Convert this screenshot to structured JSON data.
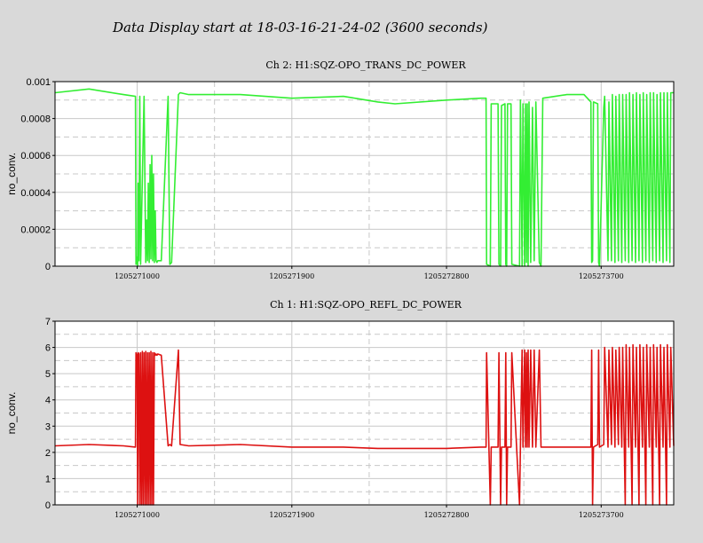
{
  "page": {
    "title": "Data Display start at 18-03-16-21-24-02 (3600 seconds)"
  },
  "colors": {
    "background": "#d9d9d9",
    "plot_bg": "#ffffff",
    "grid": "#c8c8c8",
    "trans": "#33ee33",
    "refl": "#dd1111"
  },
  "chart_data": [
    {
      "type": "line",
      "title": "Ch 2: H1:SQZ-OPO_TRANS_DC_POWER",
      "xlabel": "",
      "ylabel": "no_conv.",
      "xlim": [
        1205270522,
        1205274122
      ],
      "ylim": [
        0,
        0.001
      ],
      "xticks": [
        1205271000,
        1205271900,
        1205272800,
        1205273700
      ],
      "xtick_labels": [
        "1205271000",
        "1205271900",
        "1205272800",
        "1205273700"
      ],
      "yticks": [
        0,
        0.0002,
        0.0004,
        0.0006,
        0.0008,
        0.001
      ],
      "ytick_labels": [
        "0",
        "0.0002",
        "0.0004",
        "0.0006",
        "0.0008",
        "0.001"
      ],
      "grid": true,
      "series": [
        {
          "color": "#33ee33",
          "x": [
            1205270522,
            1205270720,
            1205270920,
            1205270990,
            1205270993,
            1205271000,
            1205271003,
            1205271006,
            1205271010,
            1205271015,
            1205271020,
            1205271040,
            1205271050,
            1205271055,
            1205271060,
            1205271065,
            1205271070,
            1205271075,
            1205271080,
            1205271085,
            1205271090,
            1205271095,
            1205271100,
            1205271105,
            1205271110,
            1205271115,
            1205271120,
            1205271140,
            1205271180,
            1205271190,
            1205271200,
            1205271240,
            1205271250,
            1205271300,
            1205271600,
            1205271900,
            1205272200,
            1205272400,
            1205272500,
            1205272800,
            1205273000,
            1205273030,
            1205273033,
            1205273055,
            1205273060,
            1205273100,
            1205273105,
            1205273115,
            1205273120,
            1205273140,
            1205273145,
            1205273150,
            1205273155,
            1205273175,
            1205273180,
            1205273225,
            1205273230,
            1205273240,
            1205273245,
            1205273255,
            1205273260,
            1205273265,
            1205273270,
            1205273275,
            1205273280,
            1205273290,
            1205273300,
            1205273310,
            1205273320,
            1205273340,
            1205273350,
            1205273360,
            1205273500,
            1205273600,
            1205273640,
            1205273645,
            1205273650,
            1205273655,
            1205273680,
            1205273685,
            1205273690,
            1205273715,
            1205273720,
            1205273740,
            1205273745,
            1205273760,
            1205273765,
            1205273780,
            1205273785,
            1205273800,
            1205273805,
            1205273820,
            1205273825,
            1205273840,
            1205273845,
            1205273860,
            1205273865,
            1205273880,
            1205273885,
            1205273900,
            1205273905,
            1205273920,
            1205273925,
            1205273940,
            1205273945,
            1205273960,
            1205273965,
            1205273980,
            1205273985,
            1205274000,
            1205274005,
            1205274020,
            1205274025,
            1205274040,
            1205274045,
            1205274060,
            1205274065,
            1205274080,
            1205274085,
            1205274100,
            1205274105,
            1205274122
          ],
          "y": [
            0.00094,
            0.00096,
            0.00093,
            0.00092,
            1e-05,
            5e-05,
            0.0,
            0.00045,
            3e-05,
            0.00092,
            1e-05,
            0.00092,
            2e-05,
            0.00025,
            3e-05,
            0.00045,
            2e-05,
            0.00055,
            4e-05,
            0.0006,
            3e-05,
            0.0005,
            2e-05,
            0.0003,
            3e-05,
            2e-05,
            3e-05,
            3e-05,
            0.00092,
            1e-05,
            2e-05,
            0.00093,
            0.00094,
            0.00093,
            0.00093,
            0.00091,
            0.00092,
            0.00089,
            0.00088,
            0.0009,
            0.00091,
            0.00091,
            1e-05,
            0.0,
            0.00088,
            0.00088,
            1e-05,
            0.0,
            0.00087,
            0.00088,
            1e-05,
            0.0,
            0.00088,
            0.00088,
            1e-05,
            0.0,
            0.0009,
            0.0,
            0.00088,
            0.0,
            0.00088,
            2e-05,
            0.00088,
            0.0,
            0.00089,
            2e-05,
            0.00086,
            3e-05,
            0.00089,
            2e-05,
            0.0,
            0.00091,
            0.00093,
            0.00093,
            0.00089,
            2e-05,
            3e-05,
            0.00089,
            0.00088,
            2e-05,
            0.0,
            0.00086,
            0.00092,
            3e-05,
            0.00089,
            3e-05,
            0.00093,
            2e-05,
            0.00092,
            3e-05,
            0.00093,
            2e-05,
            0.00093,
            3e-05,
            0.00093,
            2e-05,
            0.00094,
            3e-05,
            0.00093,
            2e-05,
            0.00094,
            3e-05,
            0.00093,
            2e-05,
            0.00094,
            3e-05,
            0.00093,
            2e-05,
            0.00094,
            3e-05,
            0.00094,
            2e-05,
            0.00093,
            3e-05,
            0.00094,
            2e-05,
            0.00094,
            3e-05,
            0.00094,
            2e-05,
            0.00094,
            0.00094
          ]
        }
      ]
    },
    {
      "type": "line",
      "title": "Ch 1: H1:SQZ-OPO_REFL_DC_POWER",
      "xlabel": "",
      "ylabel": "no_conv.",
      "xlim": [
        1205270522,
        1205274122
      ],
      "ylim": [
        0,
        7
      ],
      "xticks": [
        1205271000,
        1205271900,
        1205272800,
        1205273700
      ],
      "xtick_labels": [
        "1205271000",
        "1205271900",
        "1205272800",
        "1205273700"
      ],
      "yticks": [
        0,
        1,
        2,
        3,
        4,
        5,
        6,
        7
      ],
      "ytick_labels": [
        "0",
        "1",
        "2",
        "3",
        "4",
        "5",
        "6",
        "7"
      ],
      "grid": true,
      "series": [
        {
          "color": "#dd1111",
          "x": [
            1205270522,
            1205270720,
            1205270920,
            1205270990,
            1205270993,
            1205271000,
            1205271003,
            1205271006,
            1205271010,
            1205271015,
            1205271020,
            1205271025,
            1205271030,
            1205271035,
            1205271040,
            1205271045,
            1205271050,
            1205271055,
            1205271060,
            1205271065,
            1205271070,
            1205271075,
            1205271080,
            1205271085,
            1205271090,
            1205271095,
            1205271100,
            1205271105,
            1205271110,
            1205271115,
            1205271120,
            1205271140,
            1205271180,
            1205271190,
            1205271200,
            1205271240,
            1205271250,
            1205271300,
            1205271600,
            1205271900,
            1205272200,
            1205272400,
            1205272500,
            1205272800,
            1205273000,
            1205273030,
            1205273033,
            1205273055,
            1205273060,
            1205273100,
            1205273105,
            1205273115,
            1205273120,
            1205273140,
            1205273145,
            1205273150,
            1205273155,
            1205273175,
            1205273180,
            1205273225,
            1205273230,
            1205273240,
            1205273245,
            1205273255,
            1205273260,
            1205273265,
            1205273270,
            1205273275,
            1205273280,
            1205273290,
            1205273300,
            1205273310,
            1205273320,
            1205273340,
            1205273350,
            1205273360,
            1205273500,
            1205273600,
            1205273640,
            1205273645,
            1205273650,
            1205273655,
            1205273680,
            1205273685,
            1205273690,
            1205273715,
            1205273720,
            1205273740,
            1205273745,
            1205273760,
            1205273765,
            1205273780,
            1205273785,
            1205273800,
            1205273805,
            1205273820,
            1205273825,
            1205273840,
            1205273845,
            1205273860,
            1205273865,
            1205273880,
            1205273885,
            1205273900,
            1205273905,
            1205273920,
            1205273925,
            1205273940,
            1205273945,
            1205273960,
            1205273965,
            1205273980,
            1205273985,
            1205274000,
            1205274005,
            1205274020,
            1205274025,
            1205274040,
            1205274045,
            1205274060,
            1205274065,
            1205274080,
            1205274085,
            1205274100,
            1205274105,
            1205274122
          ],
          "y": [
            2.25,
            2.3,
            2.25,
            2.2,
            5.8,
            5.7,
            0.0,
            5.8,
            5.75,
            0.0,
            5.8,
            0.0,
            5.85,
            0.0,
            5.8,
            0.0,
            5.85,
            0.0,
            5.8,
            0.0,
            5.8,
            0.0,
            5.85,
            0.0,
            5.8,
            0.0,
            5.8,
            5.7,
            5.75,
            5.7,
            5.75,
            5.7,
            2.25,
            2.3,
            2.25,
            5.9,
            2.3,
            2.25,
            2.3,
            2.2,
            2.2,
            2.15,
            2.15,
            2.15,
            2.2,
            2.2,
            5.8,
            0.0,
            2.2,
            2.2,
            5.8,
            0.0,
            2.2,
            2.2,
            5.8,
            0.0,
            2.2,
            2.2,
            5.8,
            0.0,
            2.2,
            5.9,
            2.2,
            5.9,
            2.2,
            5.8,
            2.2,
            5.9,
            2.2,
            5.9,
            2.2,
            5.9,
            2.2,
            5.9,
            2.2,
            2.2,
            2.2,
            2.2,
            2.2,
            5.9,
            0.0,
            2.2,
            2.3,
            5.9,
            2.2,
            2.3,
            6.0,
            2.2,
            5.9,
            2.3,
            6.0,
            2.2,
            5.9,
            2.3,
            6.0,
            2.2,
            6.0,
            0.0,
            6.1,
            2.2,
            6.0,
            0.0,
            6.1,
            2.2,
            6.0,
            0.0,
            6.1,
            2.2,
            6.0,
            0.0,
            6.1,
            2.2,
            6.0,
            0.0,
            6.1,
            2.2,
            6.0,
            0.0,
            6.1,
            2.2,
            6.0,
            0.0,
            6.1,
            2.2,
            6.0,
            2.25
          ]
        }
      ]
    }
  ]
}
